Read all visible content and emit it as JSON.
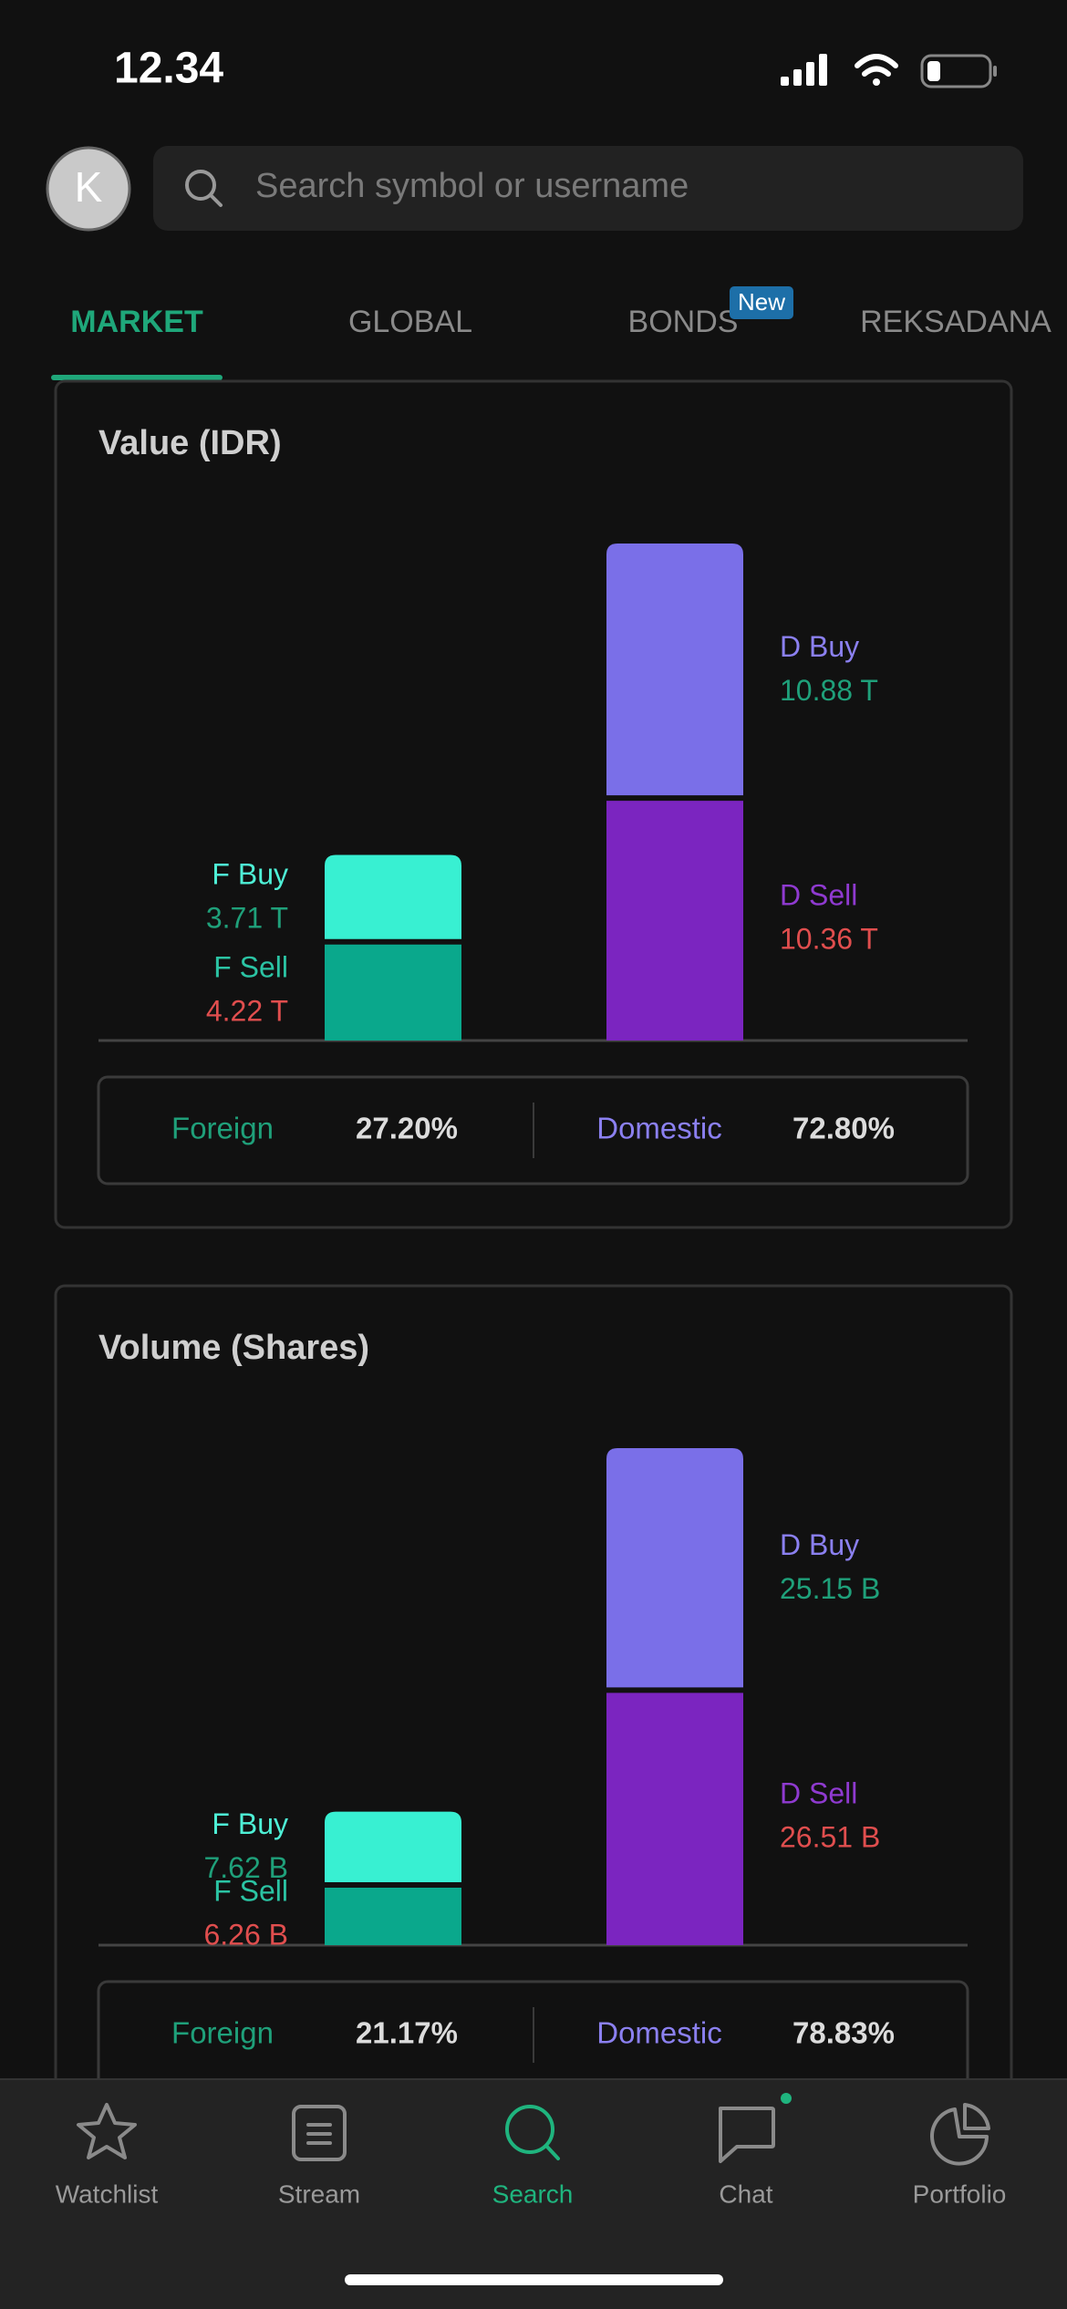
{
  "status_bar": {
    "time": "12.34"
  },
  "header": {
    "avatar": "K",
    "search_placeholder": "Search symbol or username"
  },
  "tabs": [
    {
      "label": "MARKET",
      "active": true
    },
    {
      "label": "GLOBAL"
    },
    {
      "label": "BONDS",
      "badge": "New"
    },
    {
      "label": "REKSADANA"
    }
  ],
  "charts": [
    {
      "type": "stacked-bar",
      "title": "Value (IDR)",
      "stacks": [
        {
          "segments": [
            {
              "name": "F Sell",
              "color": "#0aa88c",
              "name_color": "#2bc4a4",
              "value": 4.22,
              "value_label": "4.22 T"
            },
            {
              "name": "F Buy",
              "color": "#38f0d2",
              "name_color": "#4ef0d6",
              "value": 3.71,
              "value_label": "3.71 T"
            }
          ]
        },
        {
          "segments": [
            {
              "name": "D Sell",
              "color": "#7b25c0",
              "name_color": "#8f3ad0",
              "value": 10.36,
              "value_label": "10.36 T"
            },
            {
              "name": "D Buy",
              "color": "#7a6fe8",
              "name_color": "#8b80f0",
              "value": 10.88,
              "value_label": "10.88 T"
            }
          ]
        }
      ],
      "summary": [
        {
          "label": "Foreign",
          "value": "27.20%"
        },
        {
          "label": "Domestic",
          "value": "72.80%"
        }
      ]
    },
    {
      "type": "stacked-bar",
      "title": "Volume (Shares)",
      "stacks": [
        {
          "segments": [
            {
              "name": "F Sell",
              "color": "#0aa88c",
              "name_color": "#2bc4a4",
              "value": 6.26,
              "value_label": "6.26 B"
            },
            {
              "name": "F Buy",
              "color": "#38f0d2",
              "name_color": "#4ef0d6",
              "value": 7.62,
              "value_label": "7.62 B"
            }
          ]
        },
        {
          "segments": [
            {
              "name": "D Sell",
              "color": "#7b25c0",
              "name_color": "#8f3ad0",
              "value": 26.51,
              "value_label": "26.51 B"
            },
            {
              "name": "D Buy",
              "color": "#7a6fe8",
              "name_color": "#8b80f0",
              "value": 25.15,
              "value_label": "25.15 B"
            }
          ]
        }
      ],
      "summary": [
        {
          "label": "Foreign",
          "value": "21.17%"
        },
        {
          "label": "Domestic",
          "value": "78.83%"
        }
      ]
    }
  ],
  "nav": [
    {
      "label": "Watchlist"
    },
    {
      "label": "Stream"
    },
    {
      "label": "Search",
      "active": true
    },
    {
      "label": "Chat",
      "dot": true
    },
    {
      "label": "Portfolio"
    }
  ]
}
